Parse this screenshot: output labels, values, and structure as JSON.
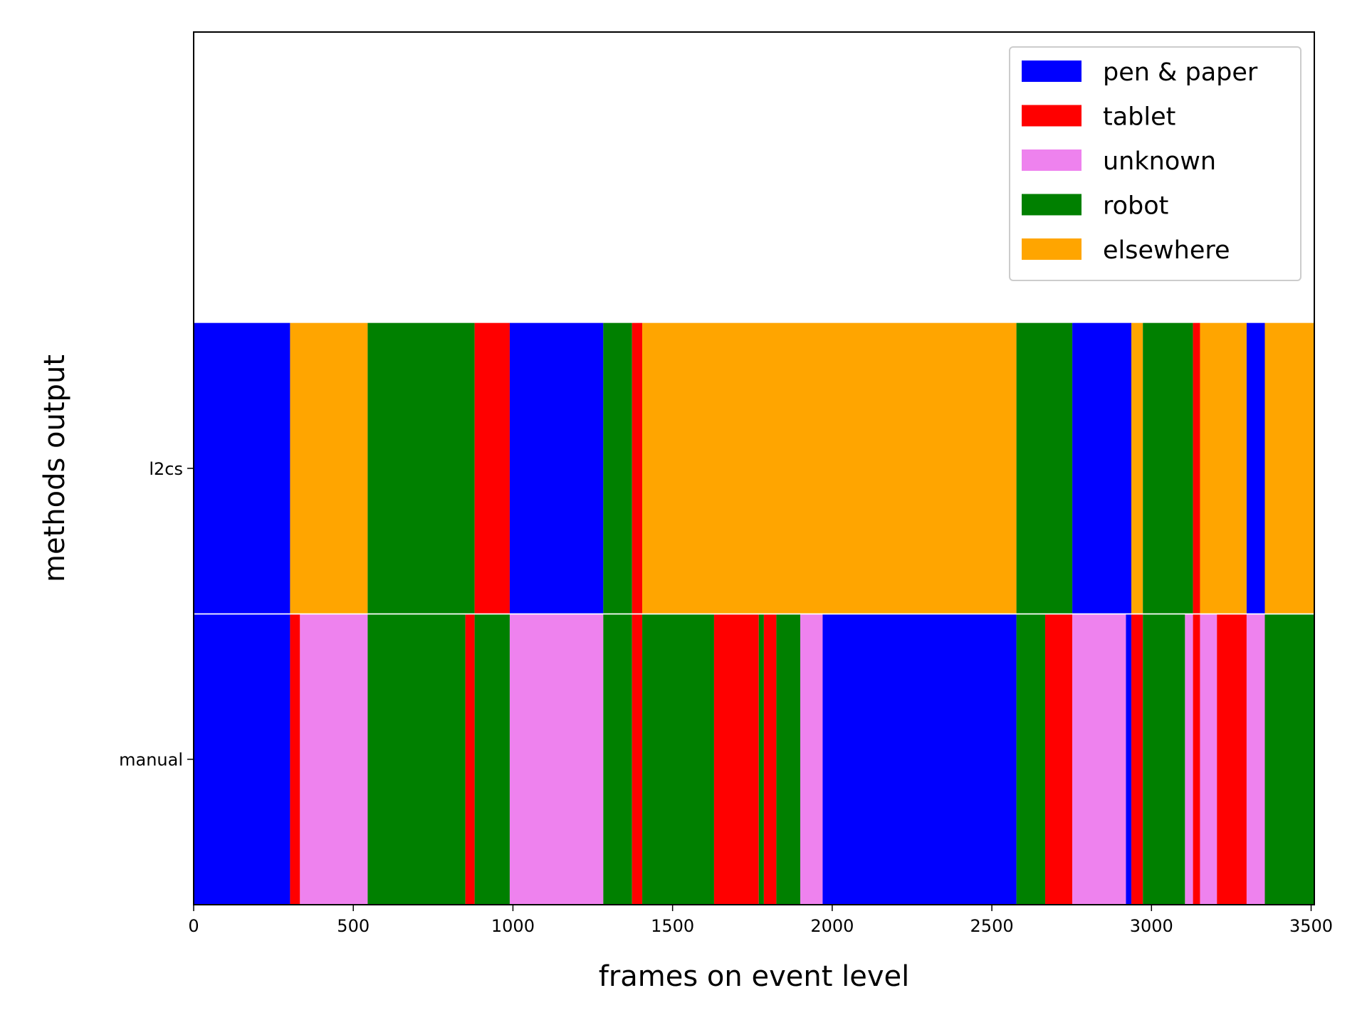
{
  "chart_data": {
    "type": "bar",
    "orientation": "horizontal-stacked-timeline",
    "xlabel": "frames on event level",
    "ylabel": "methods output",
    "xlim": [
      0,
      3510
    ],
    "xticks": [
      0,
      500,
      1000,
      1500,
      2000,
      2500,
      3000,
      3500
    ],
    "rows": [
      "l2cs",
      "manual"
    ],
    "legend": {
      "position": "top-right",
      "entries": [
        {
          "label": "pen & paper",
          "color": "#0000ff"
        },
        {
          "label": "tablet",
          "color": "#ff0000"
        },
        {
          "label": "unknown",
          "color": "#ee82ee"
        },
        {
          "label": "robot",
          "color": "#008000"
        },
        {
          "label": "elsewhere",
          "color": "#ffa500"
        }
      ]
    },
    "series": [
      {
        "row": "l2cs",
        "segments": [
          {
            "start": 0,
            "end": 302,
            "label": "pen & paper"
          },
          {
            "start": 302,
            "end": 545,
            "label": "elsewhere"
          },
          {
            "start": 545,
            "end": 880,
            "label": "robot"
          },
          {
            "start": 880,
            "end": 990,
            "label": "tablet"
          },
          {
            "start": 990,
            "end": 1283,
            "label": "pen & paper"
          },
          {
            "start": 1283,
            "end": 1373,
            "label": "robot"
          },
          {
            "start": 1373,
            "end": 1405,
            "label": "tablet"
          },
          {
            "start": 1405,
            "end": 2577,
            "label": "elsewhere"
          },
          {
            "start": 2577,
            "end": 2752,
            "label": "robot"
          },
          {
            "start": 2752,
            "end": 2937,
            "label": "pen & paper"
          },
          {
            "start": 2937,
            "end": 2973,
            "label": "elsewhere"
          },
          {
            "start": 2973,
            "end": 3130,
            "label": "robot"
          },
          {
            "start": 3130,
            "end": 3152,
            "label": "tablet"
          },
          {
            "start": 3152,
            "end": 3298,
            "label": "elsewhere"
          },
          {
            "start": 3298,
            "end": 3355,
            "label": "pen & paper"
          },
          {
            "start": 3355,
            "end": 3510,
            "label": "elsewhere"
          }
        ]
      },
      {
        "row": "manual",
        "segments": [
          {
            "start": 0,
            "end": 302,
            "label": "pen & paper"
          },
          {
            "start": 302,
            "end": 333,
            "label": "tablet"
          },
          {
            "start": 333,
            "end": 545,
            "label": "unknown"
          },
          {
            "start": 545,
            "end": 851,
            "label": "robot"
          },
          {
            "start": 851,
            "end": 880,
            "label": "tablet"
          },
          {
            "start": 880,
            "end": 990,
            "label": "robot"
          },
          {
            "start": 990,
            "end": 1283,
            "label": "unknown"
          },
          {
            "start": 1283,
            "end": 1373,
            "label": "robot"
          },
          {
            "start": 1373,
            "end": 1405,
            "label": "tablet"
          },
          {
            "start": 1405,
            "end": 1630,
            "label": "robot"
          },
          {
            "start": 1630,
            "end": 1770,
            "label": "tablet"
          },
          {
            "start": 1770,
            "end": 1786,
            "label": "robot"
          },
          {
            "start": 1786,
            "end": 1825,
            "label": "tablet"
          },
          {
            "start": 1825,
            "end": 1900,
            "label": "robot"
          },
          {
            "start": 1900,
            "end": 1970,
            "label": "unknown"
          },
          {
            "start": 1970,
            "end": 2577,
            "label": "pen & paper"
          },
          {
            "start": 2577,
            "end": 2667,
            "label": "robot"
          },
          {
            "start": 2667,
            "end": 2752,
            "label": "tablet"
          },
          {
            "start": 2752,
            "end": 2920,
            "label": "unknown"
          },
          {
            "start": 2920,
            "end": 2937,
            "label": "pen & paper"
          },
          {
            "start": 2937,
            "end": 2973,
            "label": "tablet"
          },
          {
            "start": 2973,
            "end": 3105,
            "label": "robot"
          },
          {
            "start": 3105,
            "end": 3130,
            "label": "unknown"
          },
          {
            "start": 3130,
            "end": 3152,
            "label": "tablet"
          },
          {
            "start": 3152,
            "end": 3205,
            "label": "unknown"
          },
          {
            "start": 3205,
            "end": 3298,
            "label": "tablet"
          },
          {
            "start": 3298,
            "end": 3355,
            "label": "unknown"
          },
          {
            "start": 3355,
            "end": 3510,
            "label": "robot"
          }
        ]
      }
    ]
  }
}
